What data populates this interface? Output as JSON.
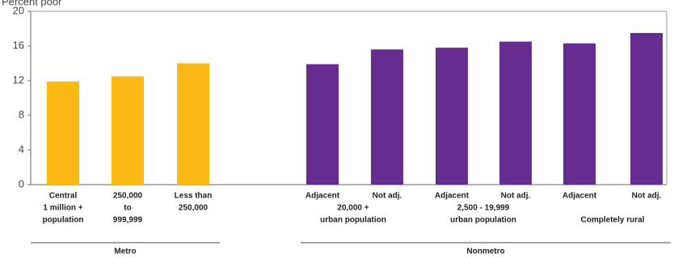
{
  "chart_data": {
    "type": "bar",
    "y_label": "Percent poor",
    "categories": [
      [
        "Central",
        "1 million +",
        "population"
      ],
      [
        "250,000",
        "to",
        "999,999"
      ],
      [
        "Less than",
        "250,000"
      ],
      [
        "Adjacent"
      ],
      [
        "Not adj."
      ],
      [
        "Adjacent"
      ],
      [
        "Not adj."
      ],
      [
        "Adjacent"
      ],
      [
        "Not adj."
      ]
    ],
    "subgroups": [
      [
        "20,000 +",
        "urban population"
      ],
      [
        "2,500 - 19,999",
        "urban population"
      ],
      [
        "Completely rural"
      ]
    ],
    "series": [
      {
        "name": "Metro",
        "color": "#fdb913",
        "values": [
          11.9,
          12.5,
          14.0,
          null,
          null,
          null,
          null,
          null,
          null
        ]
      },
      {
        "name": "Nonmetro",
        "color": "#662d91",
        "values": [
          null,
          null,
          null,
          13.9,
          15.6,
          15.8,
          16.5,
          16.3,
          17.5
        ]
      }
    ],
    "ylim": [
      0,
      20
    ],
    "yticks": [
      0,
      4,
      8,
      12,
      16,
      20
    ],
    "grid": false
  }
}
